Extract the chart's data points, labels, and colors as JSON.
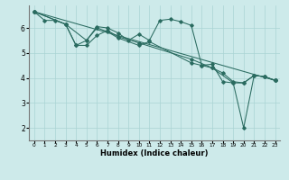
{
  "xlabel": "Humidex (Indice chaleur)",
  "bg_color": "#cdeaea",
  "grid_color": "#aad4d4",
  "line_color": "#2a6b60",
  "xlim": [
    -0.5,
    23.5
  ],
  "ylim": [
    1.5,
    6.9
  ],
  "yticks": [
    2,
    3,
    4,
    5,
    6
  ],
  "xticks": [
    0,
    1,
    2,
    3,
    4,
    5,
    6,
    7,
    8,
    9,
    10,
    11,
    12,
    13,
    14,
    15,
    16,
    17,
    18,
    19,
    20,
    21,
    22,
    23
  ],
  "lines": [
    {
      "x": [
        0,
        1,
        2,
        3,
        4,
        5,
        6,
        7,
        8,
        9,
        10,
        11,
        12,
        13,
        14,
        15,
        16,
        17,
        18,
        19,
        20,
        21,
        22,
        23
      ],
      "y": [
        6.65,
        6.3,
        6.3,
        6.15,
        5.3,
        5.5,
        6.05,
        6.0,
        5.8,
        5.5,
        5.75,
        5.5,
        6.3,
        6.35,
        6.25,
        6.1,
        4.5,
        4.55,
        3.85,
        3.8,
        2.0,
        4.1,
        4.05,
        3.9
      ]
    },
    {
      "x": [
        0,
        23
      ],
      "y": [
        6.65,
        3.9
      ]
    },
    {
      "x": [
        0,
        3,
        4,
        5,
        6,
        7,
        8,
        10,
        15,
        17,
        18,
        19,
        20,
        21,
        22,
        23
      ],
      "y": [
        6.65,
        6.15,
        5.3,
        5.3,
        5.7,
        5.9,
        5.65,
        5.4,
        4.75,
        4.4,
        4.2,
        3.85,
        3.8,
        4.1,
        4.05,
        3.9
      ]
    },
    {
      "x": [
        0,
        3,
        5,
        6,
        7,
        8,
        10,
        11,
        15,
        16,
        17,
        19,
        20,
        21,
        22,
        23
      ],
      "y": [
        6.65,
        6.15,
        5.5,
        6.0,
        5.85,
        5.6,
        5.3,
        5.45,
        4.6,
        4.5,
        4.4,
        3.8,
        3.8,
        4.1,
        4.05,
        3.9
      ]
    }
  ]
}
